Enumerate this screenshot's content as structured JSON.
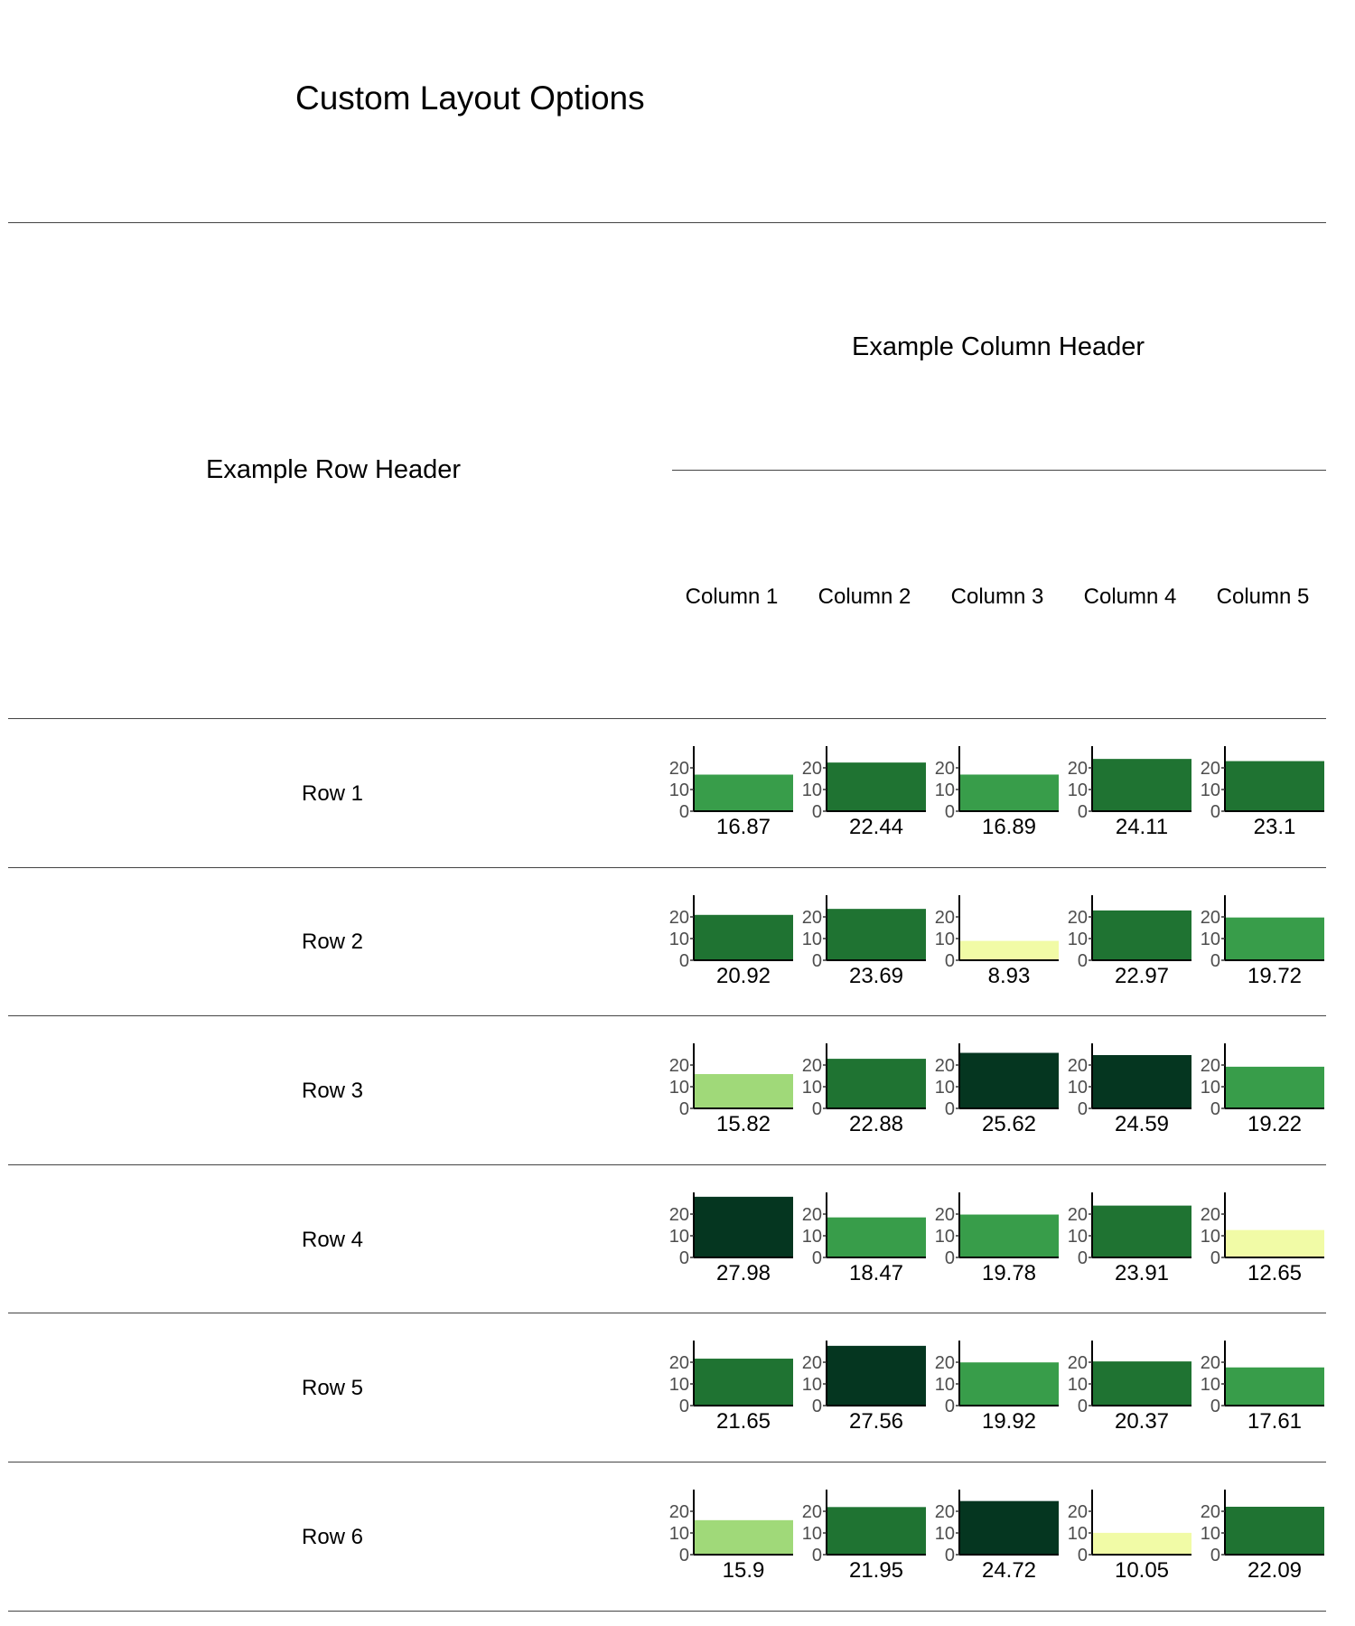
{
  "title": "Custom Layout Options",
  "column_header": "Example Column Header",
  "row_header": "Example Row Header",
  "columns": [
    "Column 1",
    "Column 2",
    "Column 3",
    "Column 4",
    "Column 5"
  ],
  "rows": [
    "Row 1",
    "Row 2",
    "Row 3",
    "Row 4",
    "Row 5",
    "Row 6"
  ],
  "chart_data": {
    "type": "bar",
    "description_free": true,
    "categories": [
      "Column 1",
      "Column 2",
      "Column 3",
      "Column 4",
      "Column 5"
    ],
    "rows": [
      "Row 1",
      "Row 2",
      "Row 3",
      "Row 4",
      "Row 5",
      "Row 6"
    ],
    "values": [
      [
        16.87,
        22.44,
        16.89,
        24.11,
        23.1
      ],
      [
        20.92,
        23.69,
        8.93,
        22.97,
        19.72
      ],
      [
        15.82,
        22.88,
        25.62,
        24.59,
        19.22
      ],
      [
        27.98,
        18.47,
        19.78,
        23.91,
        12.65
      ],
      [
        21.65,
        27.56,
        19.92,
        20.37,
        17.61
      ],
      [
        15.9,
        21.95,
        24.72,
        10.05,
        22.09
      ]
    ],
    "value_labels": [
      [
        "16.87",
        "22.44",
        "16.89",
        "24.11",
        "23.1"
      ],
      [
        "20.92",
        "23.69",
        "8.93",
        "22.97",
        "19.72"
      ],
      [
        "15.82",
        "22.88",
        "25.62",
        "24.59",
        "19.22"
      ],
      [
        "27.98",
        "18.47",
        "19.78",
        "23.91",
        "12.65"
      ],
      [
        "21.65",
        "27.56",
        "19.92",
        "20.37",
        "17.61"
      ],
      [
        "15.9",
        "21.95",
        "24.72",
        "10.05",
        "22.09"
      ]
    ],
    "yticks": [
      0,
      10,
      20
    ],
    "ylim": [
      0,
      30
    ],
    "palette": [
      "#f1fba6",
      "#a0d979",
      "#389d4a",
      "#1f7332",
      "#053620"
    ]
  }
}
